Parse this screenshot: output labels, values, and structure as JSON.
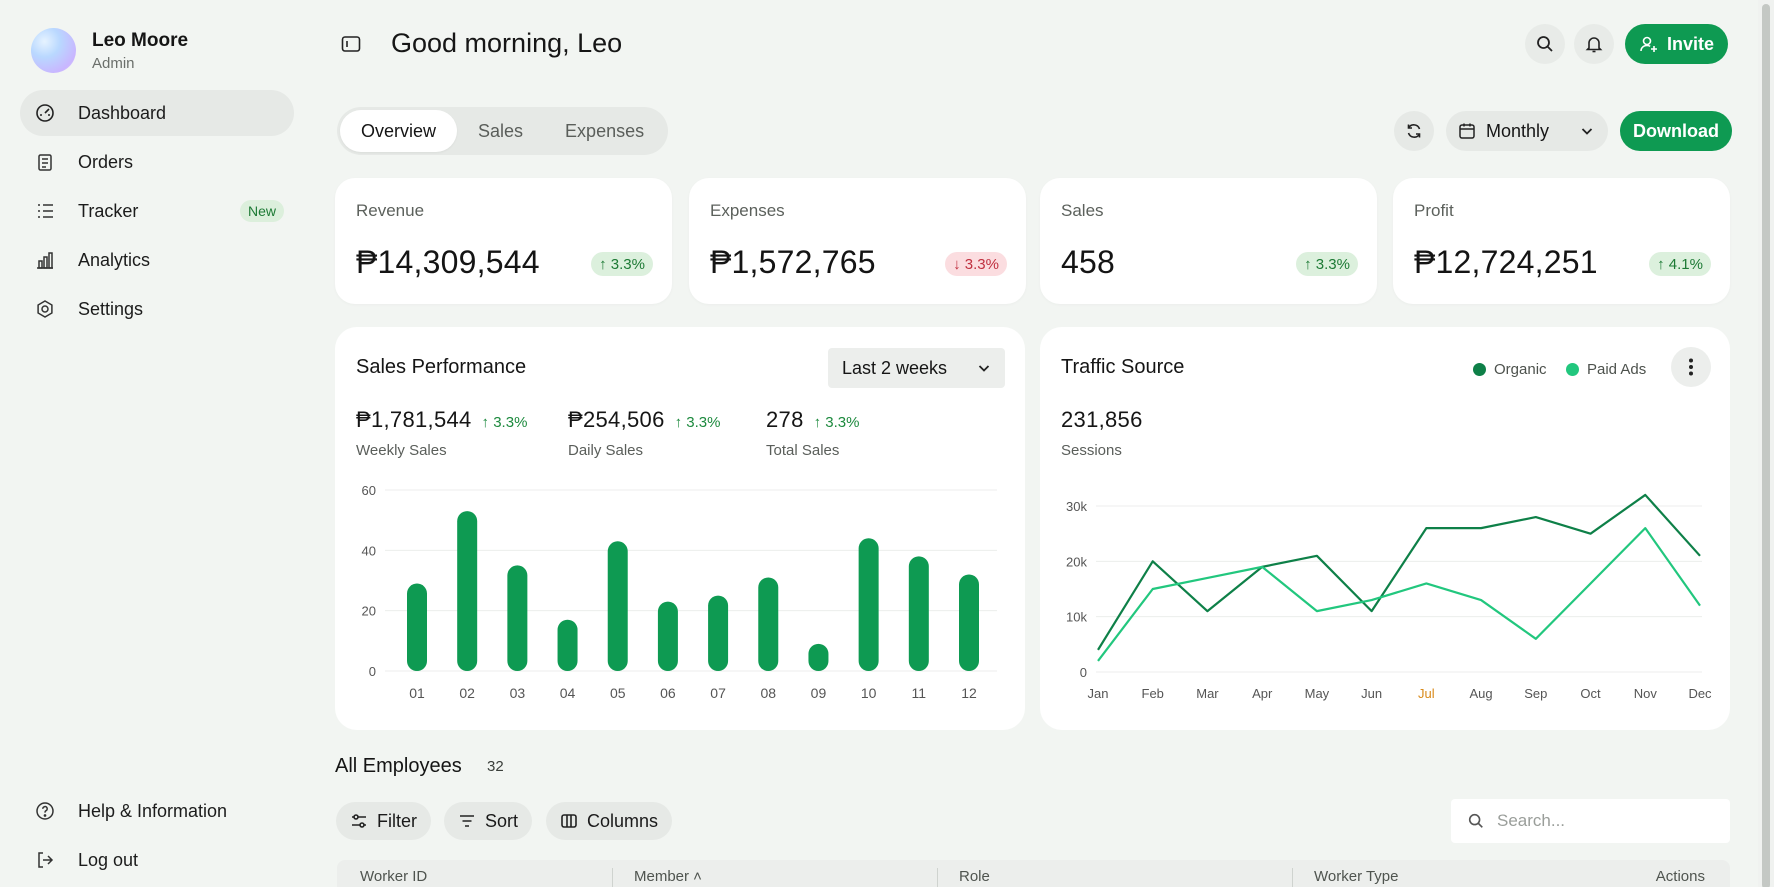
{
  "user": {
    "name": "Leo Moore",
    "role": "Admin"
  },
  "nav": {
    "items": [
      {
        "label": "Dashboard",
        "icon": "dashboard-icon",
        "active": true
      },
      {
        "label": "Orders",
        "icon": "clipboard-icon"
      },
      {
        "label": "Tracker",
        "icon": "list-icon",
        "badge": "New"
      },
      {
        "label": "Analytics",
        "icon": "bar-chart-icon"
      },
      {
        "label": "Settings",
        "icon": "gear-icon"
      }
    ],
    "bottom": [
      {
        "label": "Help & Information",
        "icon": "help-icon"
      },
      {
        "label": "Log out",
        "icon": "logout-icon"
      }
    ]
  },
  "header": {
    "greeting": "Good morning, Leo",
    "invite_label": "Invite"
  },
  "tabs": [
    "Overview",
    "Sales",
    "Expenses"
  ],
  "period": {
    "selected": "Monthly"
  },
  "download_label": "Download",
  "kpis": [
    {
      "title": "Revenue",
      "value": "₱14,309,544",
      "change": "3.3%",
      "direction": "up"
    },
    {
      "title": "Expenses",
      "value": "₱1,572,765",
      "change": "3.3%",
      "direction": "down"
    },
    {
      "title": "Sales",
      "value": "458",
      "change": "3.3%",
      "direction": "up"
    },
    {
      "title": "Profit",
      "value": "₱12,724,251",
      "change": "4.1%",
      "direction": "up"
    }
  ],
  "sales_performance": {
    "title": "Sales Performance",
    "range": "Last 2 weeks",
    "metrics": [
      {
        "value": "₱1,781,544",
        "change": "3.3%",
        "label": "Weekly Sales"
      },
      {
        "value": "₱254,506",
        "change": "3.3%",
        "label": "Daily Sales"
      },
      {
        "value": "278",
        "change": "3.3%",
        "label": "Total Sales"
      }
    ]
  },
  "traffic": {
    "title": "Traffic Source",
    "value": "231,856",
    "label": "Sessions",
    "legend": [
      "Organic",
      "Paid Ads"
    ]
  },
  "employees": {
    "title": "All Employees",
    "count": "32",
    "filter_label": "Filter",
    "sort_label": "Sort",
    "columns_label": "Columns",
    "search_placeholder": "Search...",
    "headers": [
      "Worker ID",
      "Member",
      "Role",
      "Worker Type",
      "Actions"
    ]
  },
  "colors": {
    "accent": "#0e9a52",
    "bar": "#0e9a52",
    "organic": "#0e8048",
    "paid_ads": "#22c77e",
    "highlight_month": "#d98a1a"
  },
  "chart_data": [
    {
      "type": "bar",
      "categories": [
        "01",
        "02",
        "03",
        "04",
        "05",
        "06",
        "07",
        "08",
        "09",
        "10",
        "11",
        "12"
      ],
      "values": [
        29,
        53,
        35,
        17,
        43,
        23,
        25,
        31,
        9,
        44,
        38,
        32
      ],
      "ylim": [
        0,
        60
      ],
      "yticks": [
        0,
        20,
        40,
        60
      ],
      "grid": true
    },
    {
      "type": "line",
      "categories": [
        "Jan",
        "Feb",
        "Mar",
        "Apr",
        "May",
        "Jun",
        "Jul",
        "Aug",
        "Sep",
        "Oct",
        "Nov",
        "Dec"
      ],
      "highlight_category": "Jul",
      "series": [
        {
          "name": "Organic",
          "values": [
            4,
            20,
            11,
            19,
            21,
            11,
            26,
            26,
            28,
            25,
            32,
            21
          ]
        },
        {
          "name": "Paid Ads",
          "values": [
            2,
            15,
            17,
            19,
            11,
            13,
            16,
            13,
            6,
            16,
            26,
            12
          ]
        }
      ],
      "ylim": [
        0,
        30
      ],
      "yticks": [
        0,
        10,
        20,
        30
      ],
      "ytick_labels": [
        "0",
        "10k",
        "20k",
        "30k"
      ],
      "grid": true
    }
  ]
}
